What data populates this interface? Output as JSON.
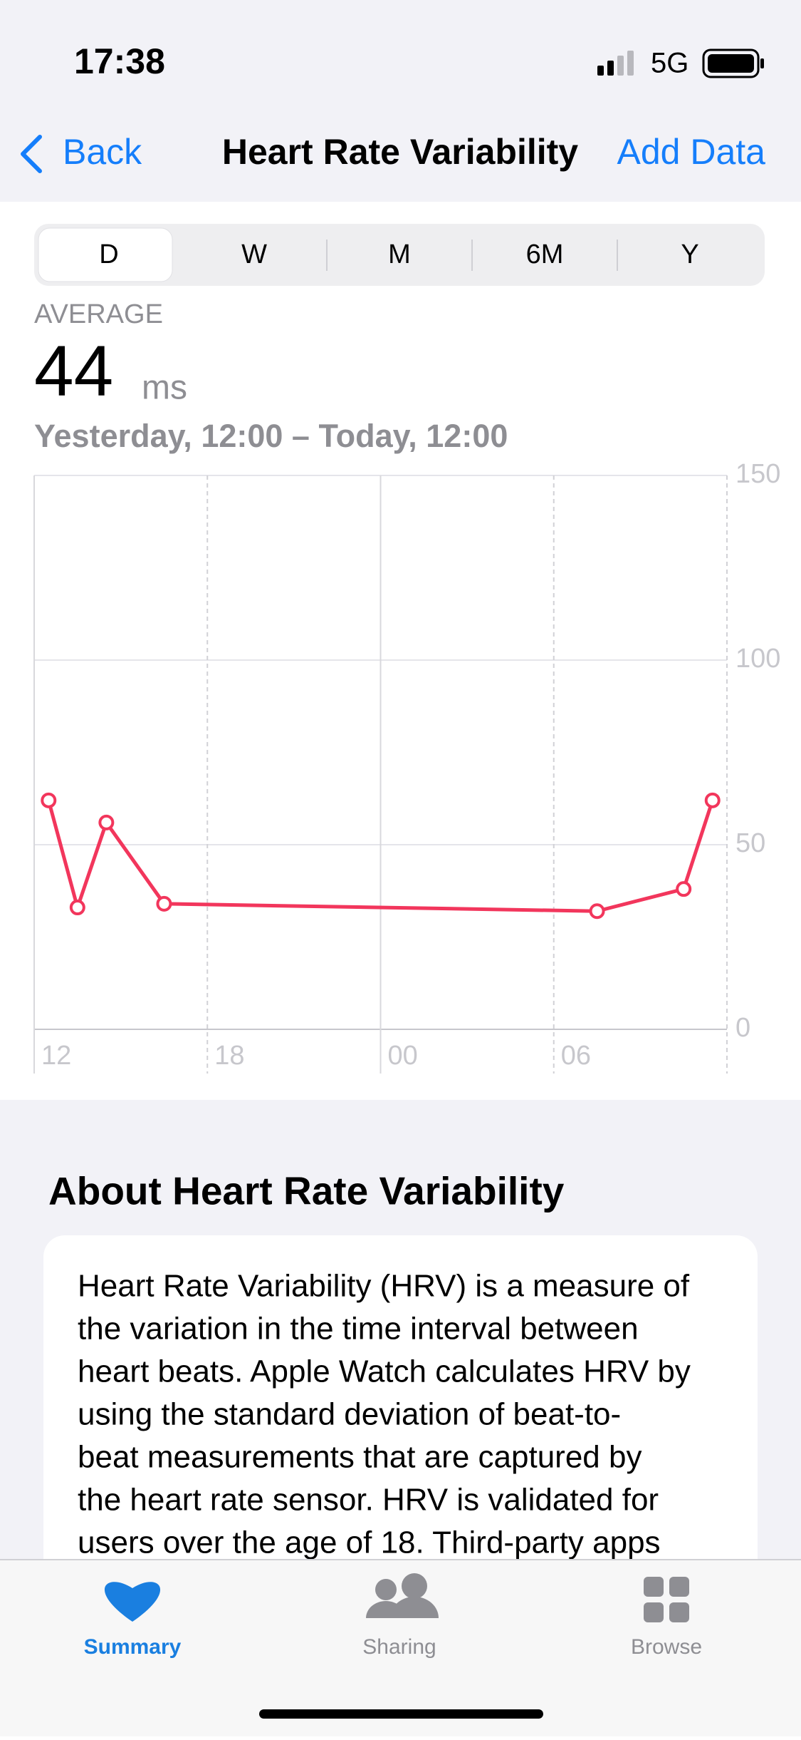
{
  "status_bar": {
    "time": "17:38",
    "network": "5G"
  },
  "nav": {
    "back": "Back",
    "title": "Heart Rate Variability",
    "action": "Add Data"
  },
  "segments": [
    "D",
    "W",
    "M",
    "6M",
    "Y"
  ],
  "summary": {
    "label": "AVERAGE",
    "value": "44",
    "unit": "ms",
    "range": "Yesterday, 12:00 – Today, 12:00"
  },
  "chart_data": {
    "type": "line",
    "x": [
      0.5,
      1.5,
      2.5,
      4.5,
      19.5,
      22.5,
      23.5
    ],
    "series": [
      {
        "name": "HRV",
        "color": "#f2365c",
        "values": [
          62,
          33,
          56,
          34,
          32,
          38,
          62
        ]
      }
    ],
    "xlim": [
      0,
      24
    ],
    "xticks": [
      {
        "value": 0,
        "label": "12"
      },
      {
        "value": 6,
        "label": "18"
      },
      {
        "value": 12,
        "label": "00"
      },
      {
        "value": 18,
        "label": "06"
      }
    ],
    "ylim": [
      0,
      150
    ],
    "yticks": [
      0,
      50,
      100,
      150
    ],
    "grid": true
  },
  "about": {
    "title": "About Heart Rate Variability",
    "lines": [
      "Heart Rate Variability (HRV) is a measure of",
      "the variation in the time interval between",
      "heart beats. Apple Watch calculates HRV by",
      "using the standard deviation of beat-to-",
      "beat measurements that are captured by",
      "the heart rate sensor. HRV is validated for",
      "users over the age of 18. Third-party apps"
    ]
  },
  "tabs": [
    "Summary",
    "Sharing",
    "Browse"
  ]
}
